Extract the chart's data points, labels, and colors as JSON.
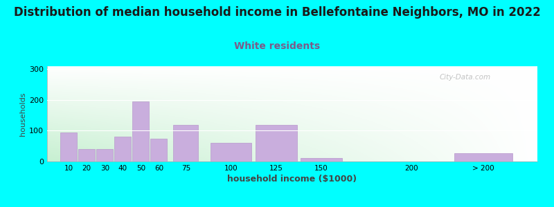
{
  "title": "Distribution of median household income in Bellefontaine Neighbors, MO in 2022",
  "subtitle": "White residents",
  "xlabel": "household income ($1000)",
  "ylabel": "households",
  "bar_labels": [
    "10",
    "20",
    "30",
    "40",
    "50",
    "60",
    "75",
    "100",
    "125",
    "150",
    "200",
    "> 200"
  ],
  "bar_values": [
    95,
    40,
    40,
    80,
    195,
    75,
    120,
    60,
    120,
    12,
    0,
    27
  ],
  "bar_color": "#c9aedd",
  "bar_edge_color": "#b898cc",
  "ylim": [
    0,
    310
  ],
  "yticks": [
    0,
    100,
    200,
    300
  ],
  "background_color": "#00ffff",
  "title_fontsize": 12,
  "subtitle_fontsize": 10,
  "subtitle_color": "#7a5c8a",
  "watermark": "City-Data.com",
  "x_positions": [
    10,
    20,
    30,
    40,
    50,
    60,
    75,
    100,
    125,
    150,
    200,
    240
  ],
  "bar_widths": [
    9.2,
    9.2,
    9.2,
    9.2,
    9.2,
    9.2,
    13.8,
    23,
    23,
    23,
    23,
    32
  ]
}
